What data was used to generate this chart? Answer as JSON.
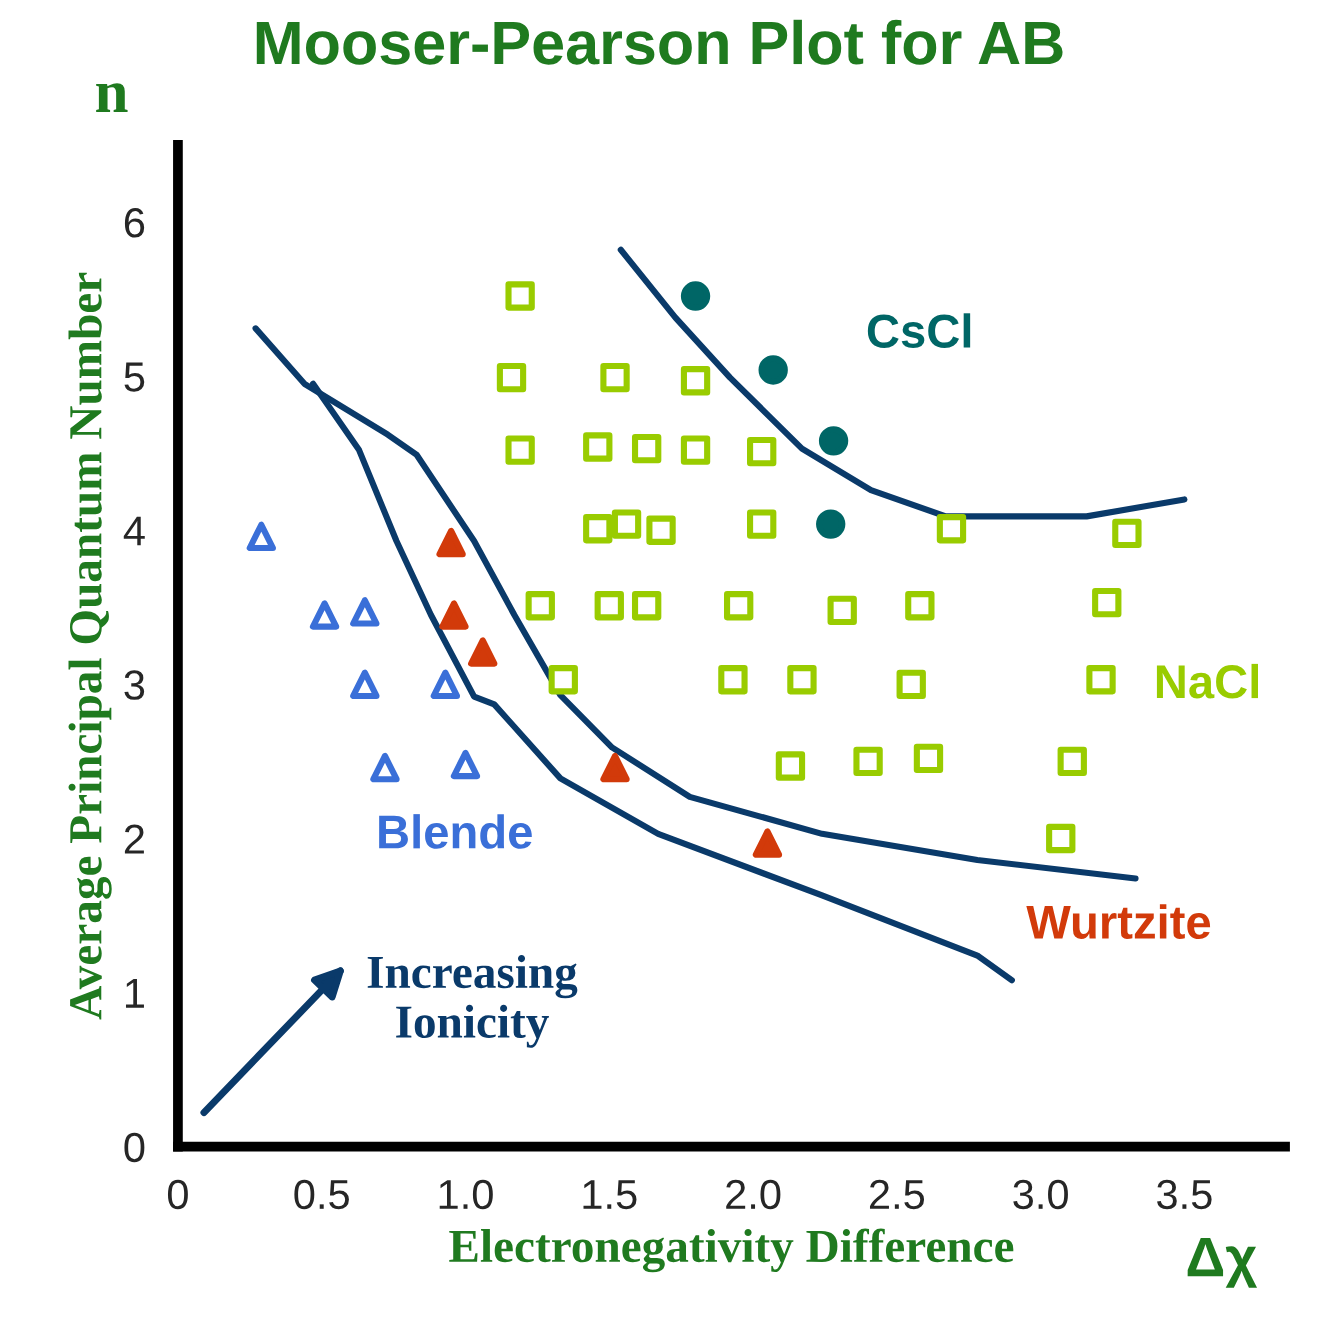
{
  "chart_data": {
    "type": "scatter",
    "title": "Mooser-Pearson Plot for AB",
    "xlabel": "Electronegativity Difference",
    "ylabel": "Average Principal Quantum Number",
    "annotations": [
      "n",
      "Δχ",
      "Increasing\nIonicity"
    ],
    "xlim": [
      0,
      3.85
    ],
    "ylim": [
      0,
      6.5
    ],
    "xticks": [
      0,
      0.5,
      {
        "value": 1,
        "label": "1.0"
      },
      1.5,
      {
        "value": 2,
        "label": "2.0"
      },
      2.5,
      {
        "value": 3,
        "label": "3.0"
      },
      3.5
    ],
    "yticks": [
      0,
      1,
      2,
      3,
      4,
      5,
      6
    ],
    "grid": false,
    "legend": false,
    "series": [
      {
        "name": "Blende",
        "color": "#3a6fd8",
        "marker": "triangle",
        "x": [
          0.29,
          0.51,
          0.65,
          0.65,
          0.93,
          0.72,
          1.0
        ],
        "values": [
          3.96,
          3.45,
          3.47,
          3.0,
          3.0,
          2.46,
          2.48
        ]
      },
      {
        "name": "Wurtzite",
        "color": "#d23a0a",
        "marker": "triangle",
        "x": [
          0.95,
          0.96,
          1.06,
          1.52,
          2.05
        ],
        "values": [
          3.92,
          3.45,
          3.21,
          2.46,
          1.97
        ]
      },
      {
        "name": "NaCl",
        "color": "#99cc00",
        "marker": "square",
        "x": [
          1.19,
          1.16,
          1.19,
          1.52,
          1.46,
          1.63,
          1.46,
          1.56,
          1.26,
          1.5,
          1.34,
          1.8,
          1.8,
          2.03,
          1.68,
          2.03,
          2.69,
          3.3,
          1.63,
          1.95,
          2.31,
          2.58,
          3.23,
          1.93,
          2.17,
          2.55,
          3.21,
          2.13,
          2.4,
          2.61,
          3.11,
          3.07
        ],
        "values": [
          5.52,
          4.99,
          4.52,
          4.99,
          4.54,
          4.53,
          4.01,
          4.04,
          3.51,
          3.51,
          3.03,
          4.97,
          4.52,
          4.51,
          4.0,
          4.04,
          4.01,
          3.98,
          3.51,
          3.51,
          3.48,
          3.51,
          3.53,
          3.03,
          3.03,
          3.0,
          3.03,
          2.47,
          2.5,
          2.52,
          2.5,
          2.0
        ]
      },
      {
        "name": "CsCl",
        "color": "#006666",
        "marker": "circle",
        "x": [
          1.8,
          2.07,
          2.28,
          2.27
        ],
        "values": [
          5.52,
          5.04,
          4.58,
          4.04
        ]
      },
      {
        "type": "line",
        "color": "#0a3a6a",
        "marker": "none",
        "x": [
          0.27,
          0.44,
          0.73,
          0.83,
          1.03,
          1.17,
          1.33,
          1.51,
          1.78,
          2.24,
          2.78,
          3.33
        ],
        "values": [
          5.31,
          4.95,
          4.62,
          4.49,
          3.93,
          3.45,
          2.93,
          2.59,
          2.27,
          2.03,
          1.86,
          1.74
        ]
      },
      {
        "type": "line",
        "color": "#0a3a6a",
        "marker": "none",
        "x": [
          0.47,
          0.63,
          0.76,
          0.88,
          1.03,
          1.1,
          1.33,
          1.67,
          2.24,
          2.78,
          2.9
        ],
        "values": [
          4.95,
          4.52,
          3.93,
          3.45,
          2.92,
          2.87,
          2.39,
          2.03,
          1.63,
          1.24,
          1.08
        ]
      },
      {
        "type": "line",
        "color": "#0a3a6a",
        "marker": "none",
        "x": [
          1.54,
          1.73,
          1.92,
          2.17,
          2.41,
          2.67,
          3.16,
          3.5
        ],
        "values": [
          5.82,
          5.38,
          4.99,
          4.53,
          4.26,
          4.09,
          4.09,
          4.2
        ]
      }
    ]
  }
}
